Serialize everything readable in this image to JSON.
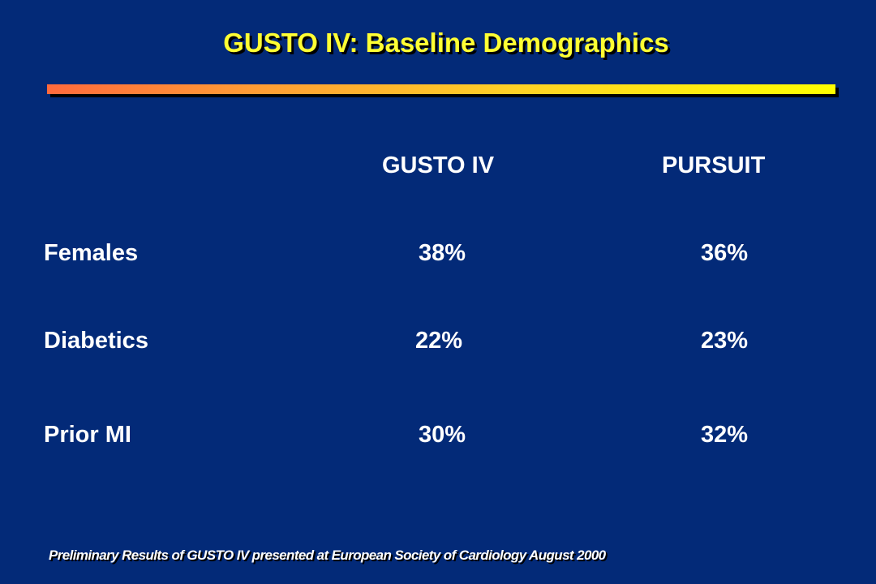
{
  "slide": {
    "title": "GUSTO IV: Baseline Demographics",
    "footnote": "Preliminary Results of GUSTO IV presented at European Society of Cardiology August 2000",
    "accent_colors": {
      "background": "#032a78",
      "title_text": "#ffff33",
      "rule_gradient_start": "#ff6a3c",
      "rule_gradient_end": "#ffff00",
      "body_text": "#ffffff"
    }
  },
  "table": {
    "columns": [
      "GUSTO IV",
      "PURSUIT"
    ],
    "rows": [
      {
        "label": "Females",
        "values": [
          "38%",
          "36%"
        ]
      },
      {
        "label": "Diabetics",
        "values": [
          "22%",
          "23%"
        ]
      },
      {
        "label": "Prior MI",
        "values": [
          "30%",
          "32%"
        ]
      }
    ]
  }
}
